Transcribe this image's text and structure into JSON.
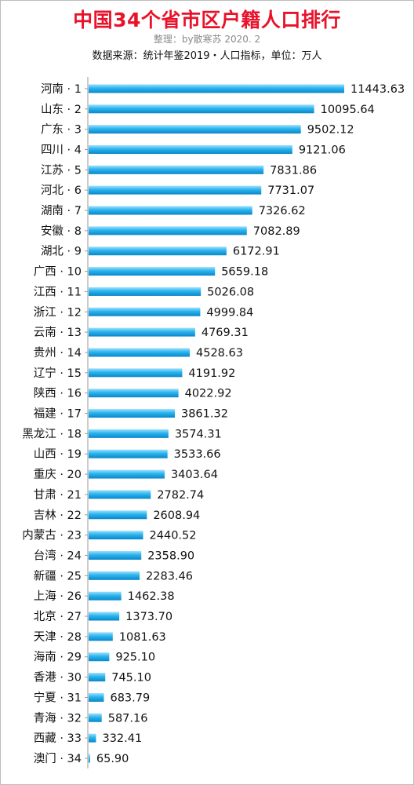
{
  "title": "中国34个省市区户籍人口排行",
  "subtitle": "整理：by散寒苏  2020. 2",
  "source": "数据来源：统计年鉴2019・人口指标，单位：万人",
  "colors": {
    "title": "#e8132b",
    "bar_top": "#9fe0fb",
    "bar_mid": "#29b4ee",
    "bar_bottom": "#0a86c9",
    "axis": "#9a9a9a"
  },
  "chart_data": {
    "type": "bar",
    "orientation": "horizontal",
    "title": "中国34个省市区户籍人口排行",
    "unit": "万人",
    "categories": [
      "河南 · 1",
      "山东 · 2",
      "广东 · 3",
      "四川 · 4",
      "江苏 · 5",
      "河北 · 6",
      "湖南 · 7",
      "安徽 · 8",
      "湖北 · 9",
      "广西 · 10",
      "江西 · 11",
      "浙江 · 12",
      "云南 · 13",
      "贵州 · 14",
      "辽宁 · 15",
      "陕西 · 16",
      "福建 · 17",
      "黑龙江 · 18",
      "山西 · 19",
      "重庆 · 20",
      "甘肃 · 21",
      "吉林 · 22",
      "内蒙古 · 23",
      "台湾 · 24",
      "新疆 · 25",
      "上海 · 26",
      "北京 · 27",
      "天津 · 28",
      "海南 · 29",
      "香港 · 30",
      "宁夏 · 31",
      "青海 · 32",
      "西藏 · 33",
      "澳门 · 34"
    ],
    "values": [
      11443.63,
      10095.64,
      9502.12,
      9121.06,
      7831.86,
      7731.07,
      7326.62,
      7082.89,
      6172.91,
      5659.18,
      5026.08,
      4999.84,
      4769.31,
      4528.63,
      4191.92,
      4022.92,
      3861.32,
      3574.31,
      3533.66,
      3403.64,
      2782.74,
      2608.94,
      2440.52,
      2358.9,
      2283.46,
      1462.38,
      1373.7,
      1081.63,
      925.1,
      745.1,
      683.79,
      587.16,
      332.41,
      65.9
    ],
    "value_labels": [
      "11443.63",
      "10095.64",
      "9502.12",
      "9121.06",
      "7831.86",
      "7731.07",
      "7326.62",
      "7082.89",
      "6172.91",
      "5659.18",
      "5026.08",
      "4999.84",
      "4769.31",
      "4528.63",
      "4191.92",
      "4022.92",
      "3861.32",
      "3574.31",
      "3533.66",
      "3403.64",
      "2782.74",
      "2608.94",
      "2440.52",
      "2358.90",
      "2283.46",
      "1462.38",
      "1373.70",
      "1081.63",
      "925.10",
      "745.10",
      "683.79",
      "587.16",
      "332.41",
      "65.90"
    ]
  }
}
